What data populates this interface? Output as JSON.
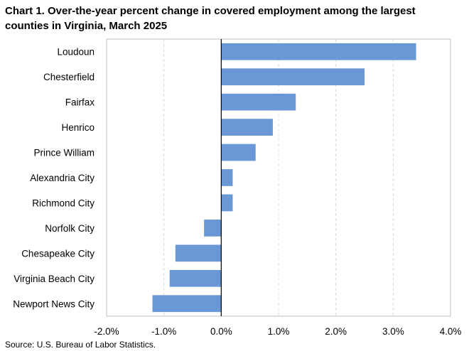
{
  "chart_data": {
    "type": "bar",
    "orientation": "horizontal",
    "title": "Chart 1. Over-the-year percent change in covered employment among the largest counties in Virginia, March 2025",
    "categories": [
      "Loudoun",
      "Chesterfield",
      "Fairfax",
      "Henrico",
      "Prince William",
      "Alexandria City",
      "Richmond City",
      "Norfolk City",
      "Chesapeake City",
      "Virginia Beach City",
      "Newport News City"
    ],
    "values": [
      3.4,
      2.5,
      1.3,
      0.9,
      0.6,
      0.2,
      0.2,
      -0.3,
      -0.8,
      -0.9,
      -1.2
    ],
    "xlim": [
      -2.0,
      4.0
    ],
    "xticks": [
      -2.0,
      -1.0,
      0.0,
      1.0,
      2.0,
      3.0,
      4.0
    ],
    "xtick_labels": [
      "-2.0%",
      "-1.0%",
      "0.0%",
      "1.0%",
      "2.0%",
      "3.0%",
      "4.0%"
    ],
    "grid": "vertical dashed",
    "bar_color": "#6a98d6",
    "xlabel": "",
    "ylabel": ""
  },
  "source": "Source: U.S. Bureau of Labor Statistics."
}
